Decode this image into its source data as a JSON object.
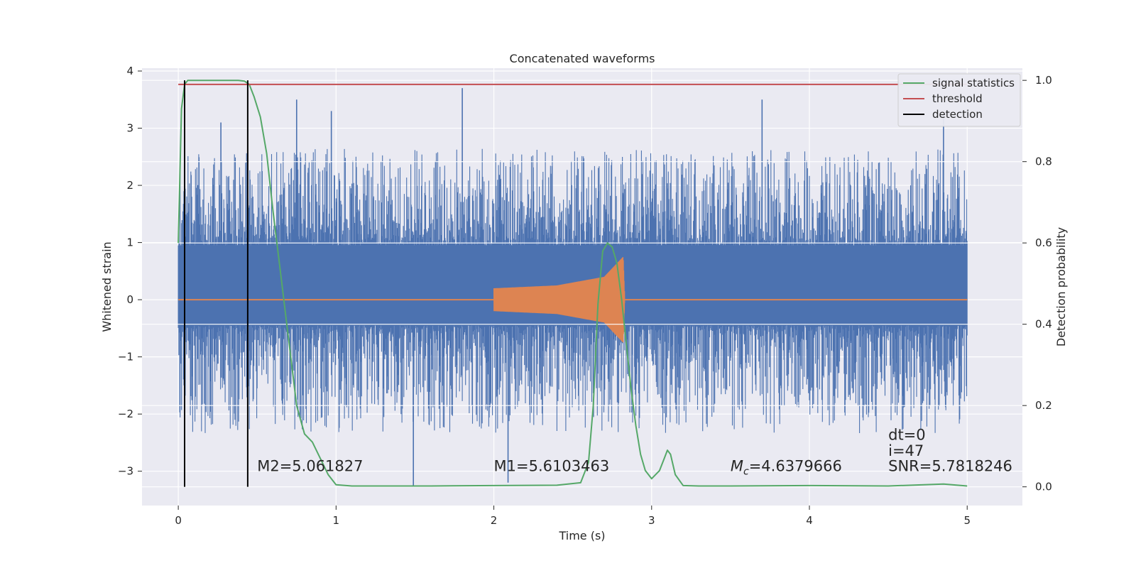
{
  "chart_data": {
    "type": "line",
    "title": "Concatenated waveforms",
    "xlabel": "Time (s)",
    "ylabel": "Whitened strain",
    "y2label": "Detection probability",
    "xlim": [
      -0.23,
      5.35
    ],
    "ylim": [
      -3.6,
      4.05
    ],
    "y2lim": [
      -0.046,
      1.03
    ],
    "xticks": [
      0,
      1,
      2,
      3,
      4,
      5
    ],
    "yticks": [
      -3,
      -2,
      -1,
      0,
      1,
      2,
      3,
      4
    ],
    "y2ticks": [
      0.0,
      0.2,
      0.4,
      0.6,
      0.8,
      1.0
    ],
    "grid": true,
    "legend_position": "top-right",
    "legend": [
      {
        "label": "signal statistics",
        "color": "#55a868"
      },
      {
        "label": "threshold",
        "color": "#c44e52"
      },
      {
        "label": "detection",
        "color": "#000000"
      }
    ],
    "series": [
      {
        "description": "whitened strain noise",
        "color": "#4c72b0",
        "x_range": [
          0,
          5
        ],
        "band": {
          "low_typical": -1.9,
          "high_typical": 2.2,
          "core_low": -0.45,
          "core_high": 0.95
        },
        "notable_peaks": [
          {
            "x": 0.27,
            "y": 3.1
          },
          {
            "x": 0.75,
            "y": 3.5
          },
          {
            "x": 0.97,
            "y": 3.3
          },
          {
            "x": 1.8,
            "y": 3.7
          },
          {
            "x": 3.7,
            "y": 3.5
          },
          {
            "x": 4.85,
            "y": 3.25
          },
          {
            "x": 1.49,
            "y": -3.25
          },
          {
            "x": 2.09,
            "y": -3.2
          }
        ]
      },
      {
        "description": "injected chirp waveform",
        "color": "#dd8452",
        "x": [
          2.0,
          2.4,
          2.7,
          2.82,
          2.83
        ],
        "amplitude": [
          0.2,
          0.25,
          0.4,
          0.75,
          0.0
        ],
        "x_range": [
          0,
          5
        ]
      },
      {
        "name": "signal statistics",
        "axis": "right",
        "color": "#55a868",
        "x": [
          0,
          0.02,
          0.04,
          0.06,
          0.1,
          0.15,
          0.2,
          0.3,
          0.38,
          0.42,
          0.45,
          0.48,
          0.52,
          0.56,
          0.6,
          0.65,
          0.7,
          0.75,
          0.8,
          0.85,
          0.9,
          0.95,
          1.0,
          1.1,
          1.3,
          1.6,
          2.0,
          2.4,
          2.55,
          2.6,
          2.63,
          2.66,
          2.69,
          2.72,
          2.75,
          2.78,
          2.81,
          2.84,
          2.87,
          2.9,
          2.93,
          2.96,
          3.0,
          3.05,
          3.08,
          3.1,
          3.12,
          3.15,
          3.2,
          3.3,
          3.5,
          4.0,
          4.5,
          4.85,
          5.0
        ],
        "y": [
          0.6,
          0.93,
          0.99,
          1.0,
          1.0,
          1.0,
          1.0,
          1.0,
          1.0,
          0.998,
          0.99,
          0.96,
          0.91,
          0.82,
          0.68,
          0.52,
          0.36,
          0.2,
          0.13,
          0.11,
          0.07,
          0.03,
          0.005,
          0.002,
          0.002,
          0.002,
          0.003,
          0.004,
          0.01,
          0.06,
          0.2,
          0.45,
          0.58,
          0.6,
          0.59,
          0.55,
          0.46,
          0.35,
          0.24,
          0.15,
          0.08,
          0.04,
          0.02,
          0.04,
          0.07,
          0.09,
          0.08,
          0.03,
          0.003,
          0.002,
          0.002,
          0.003,
          0.002,
          0.007,
          0.002
        ]
      },
      {
        "name": "threshold",
        "axis": "right",
        "color": "#c44e52",
        "x": [
          0,
          5
        ],
        "y": [
          0.99,
          0.99
        ]
      }
    ],
    "detections": [
      0.04,
      0.44
    ],
    "annotations": [
      {
        "text": "M2=5.061827",
        "x": 0.5,
        "y": -3.0
      },
      {
        "text": "M1=5.6103463",
        "x": 2.0,
        "y": -3.0
      },
      {
        "text": "=4.6379666",
        "math_prefix": "Mc",
        "x": 3.5,
        "y": -3.0
      },
      {
        "text": "dt=0",
        "x": 4.5,
        "y": -2.45
      },
      {
        "text": "i=47",
        "x": 4.5,
        "y": -2.73
      },
      {
        "text": "SNR=5.7818246",
        "x": 4.5,
        "y": -3.0
      }
    ]
  }
}
